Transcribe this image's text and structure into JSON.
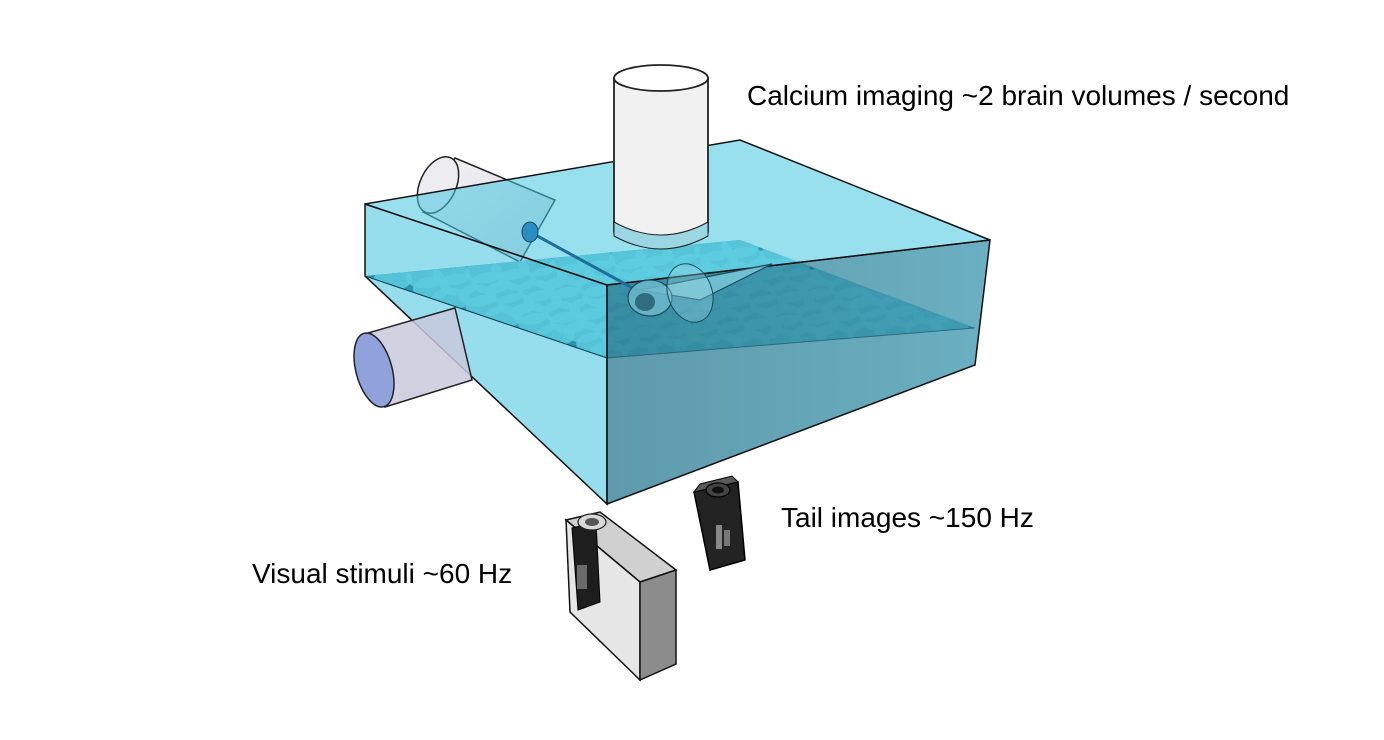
{
  "labels": {
    "calcium_imaging": "Calcium imaging ~2 brain volumes / second",
    "tail_images": "Tail images ~150 Hz",
    "visual_stimuli": "Visual stimuli ~60 Hz"
  },
  "colors": {
    "water": "#3fc3de",
    "water_dark": "#1d6f86",
    "dot": "#7fd6e2",
    "cylinder": "#f2f2f2",
    "projector_body": "#8c8c8c",
    "camera_body": "#222222"
  },
  "icons": {
    "objective": "microscope-objective-icon",
    "laser": "laser-tube-icon",
    "projector": "projector-icon",
    "camera": "camera-icon",
    "fish": "zebrafish-icon"
  }
}
